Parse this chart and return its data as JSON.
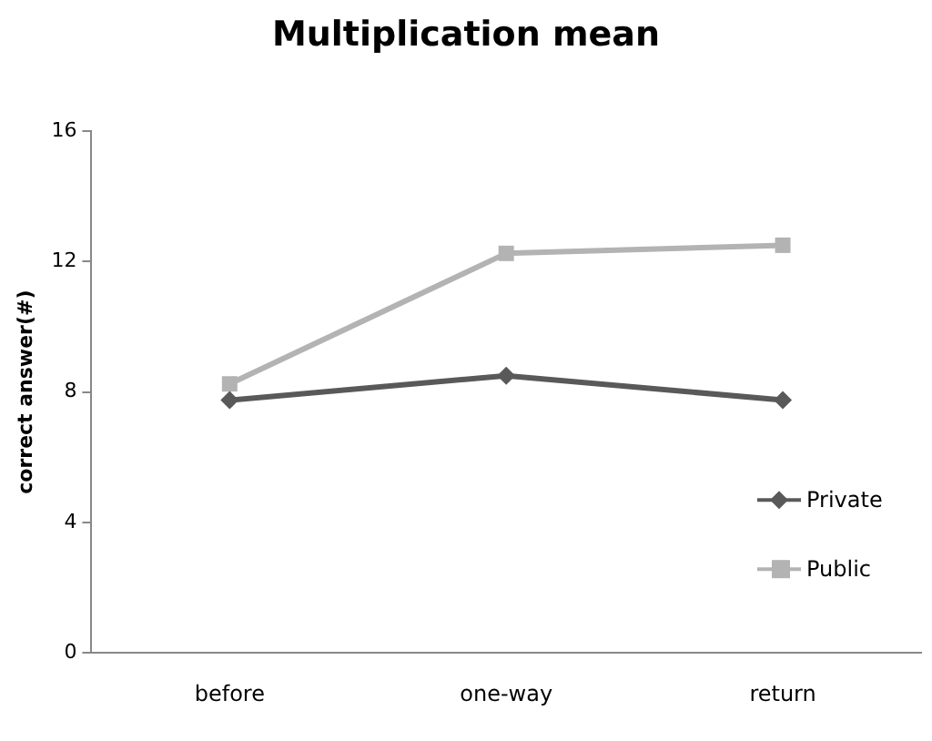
{
  "chart_data": {
    "type": "line",
    "title": "Multiplication mean",
    "ylabel": "correct answer(#)",
    "categories": [
      "before",
      "one-way",
      "return"
    ],
    "series": [
      {
        "name": "Private",
        "color": "#595959",
        "values": [
          7.75,
          8.5,
          7.75
        ],
        "marker": "diamond"
      },
      {
        "name": "Public",
        "color": "#b3b3b3",
        "values": [
          8.25,
          12.25,
          12.5
        ],
        "marker": "square"
      }
    ],
    "ylim": [
      0,
      16
    ],
    "yticks": [
      0,
      4,
      8,
      12,
      16
    ],
    "grid": false,
    "legend": "bottom right",
    "line_style": "solid"
  }
}
